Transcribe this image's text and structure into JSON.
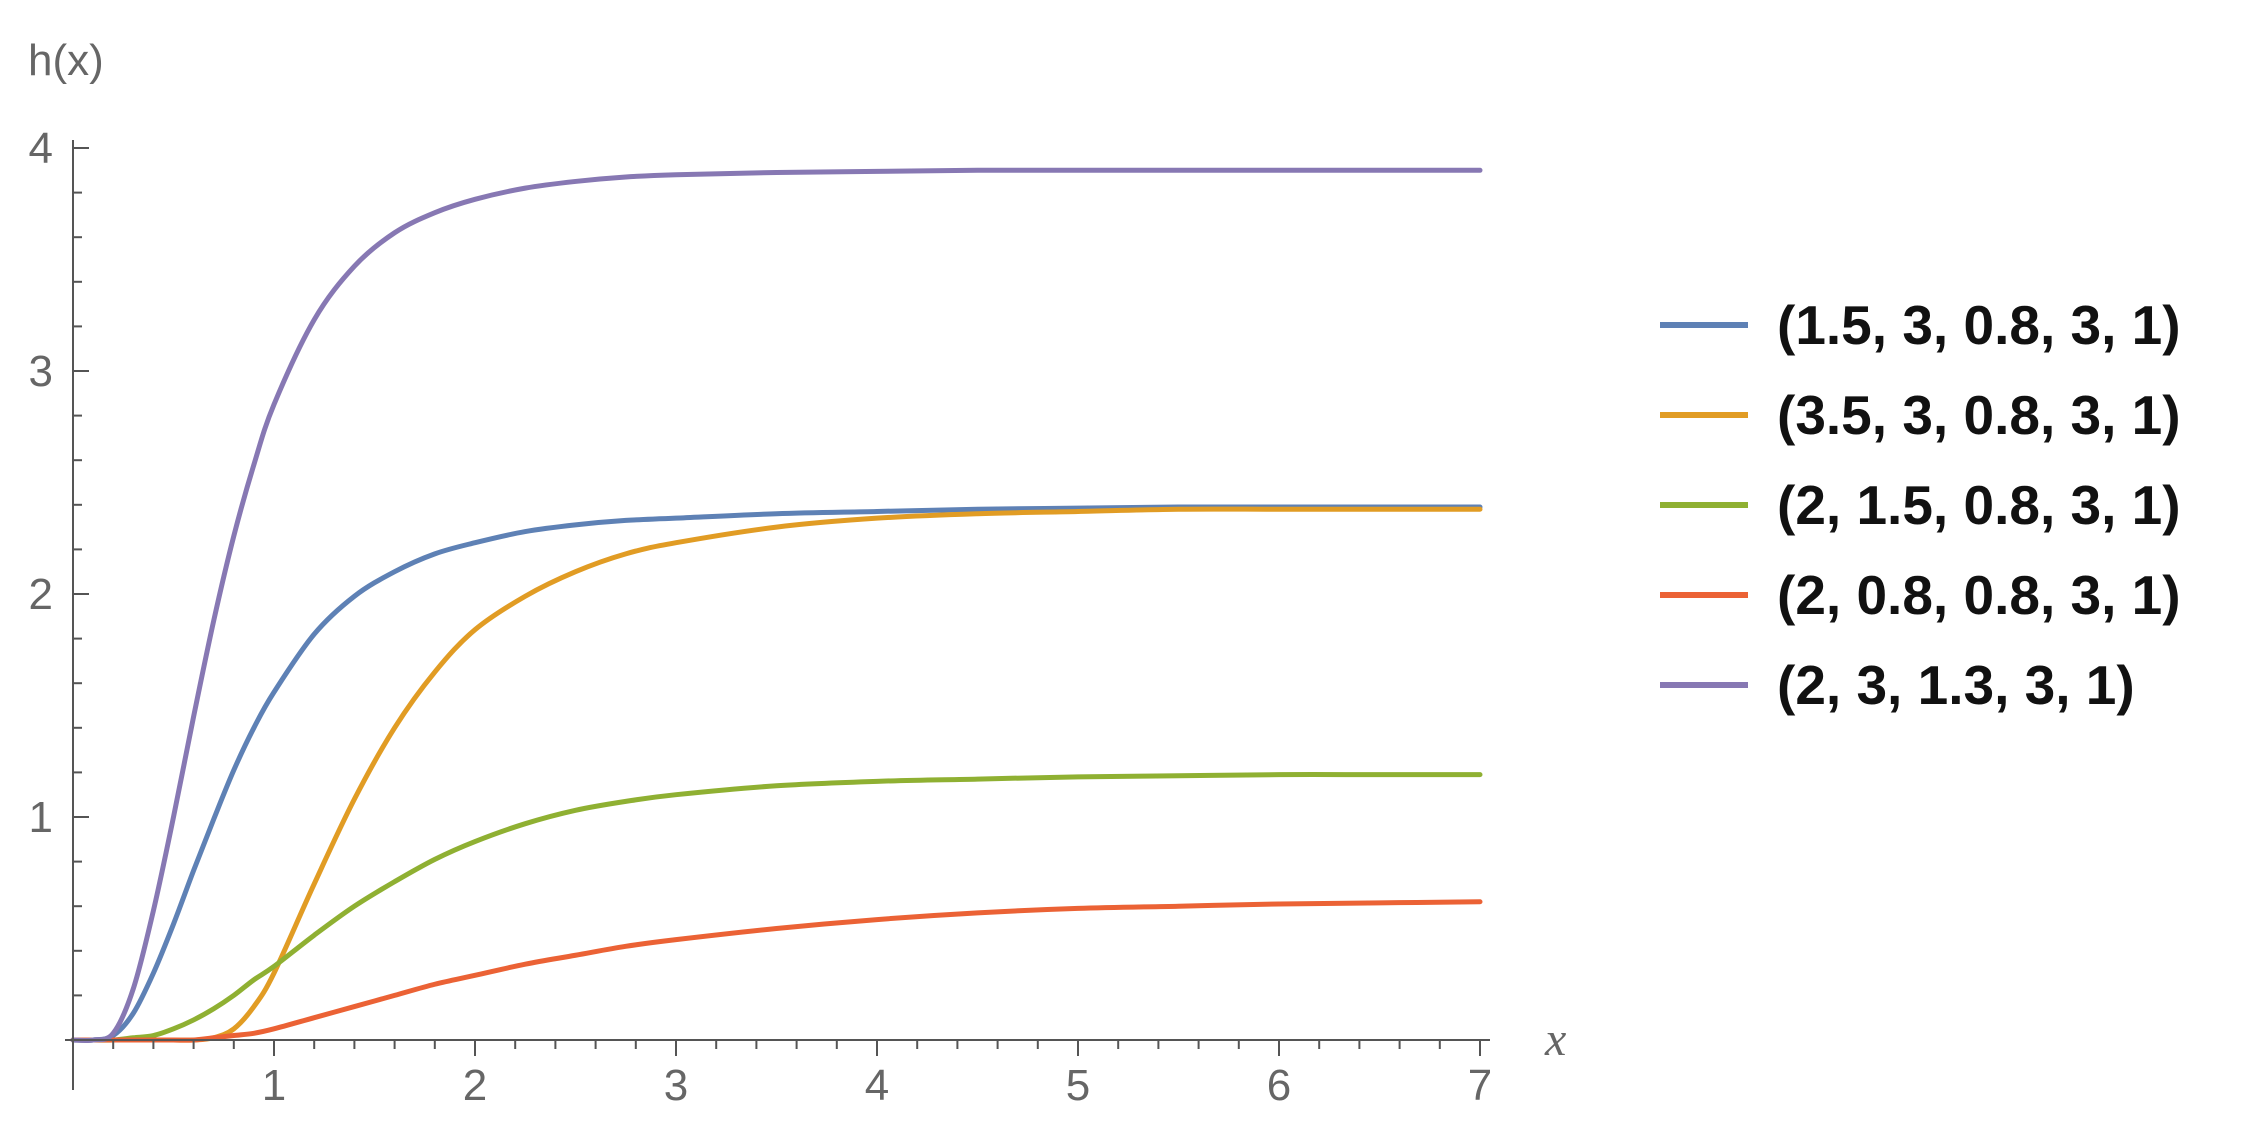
{
  "chart_data": {
    "type": "line",
    "title": "",
    "xlabel": "x",
    "ylabel": "h(x)",
    "xlim": [
      0,
      7
    ],
    "ylim": [
      0,
      4
    ],
    "x_ticks": [
      "1",
      "2",
      "3",
      "4",
      "5",
      "6",
      "7"
    ],
    "y_ticks": [
      "1",
      "2",
      "3",
      "4"
    ],
    "grid": false,
    "legend_position": "right",
    "x": [
      0,
      0.1,
      0.2,
      0.3,
      0.4,
      0.5,
      0.6,
      0.7,
      0.8,
      0.9,
      1.0,
      1.2,
      1.4,
      1.6,
      1.8,
      2.0,
      2.25,
      2.5,
      2.75,
      3.0,
      3.5,
      4.0,
      4.5,
      5.0,
      5.5,
      6.0,
      6.5,
      7.0
    ],
    "series": [
      {
        "name": "(1.5, 3, 0.8, 3, 1)",
        "color": "#5e81b5",
        "values": [
          0,
          0,
          0.02,
          0.12,
          0.3,
          0.52,
          0.76,
          0.99,
          1.21,
          1.4,
          1.56,
          1.82,
          1.99,
          2.1,
          2.18,
          2.23,
          2.28,
          2.31,
          2.33,
          2.34,
          2.36,
          2.37,
          2.38,
          2.385,
          2.39,
          2.39,
          2.39,
          2.39
        ]
      },
      {
        "name": "(3.5, 3, 0.8, 3, 1)",
        "color": "#e19c24",
        "values": [
          0,
          0,
          0,
          0,
          0,
          0,
          0,
          0.01,
          0.05,
          0.15,
          0.3,
          0.7,
          1.08,
          1.4,
          1.65,
          1.84,
          1.99,
          2.1,
          2.18,
          2.23,
          2.3,
          2.34,
          2.36,
          2.37,
          2.38,
          2.38,
          2.38,
          2.38
        ]
      },
      {
        "name": "(2, 1.5, 0.8, 3, 1)",
        "color": "#8fb032",
        "values": [
          0,
          0,
          0,
          0.01,
          0.02,
          0.05,
          0.09,
          0.14,
          0.2,
          0.27,
          0.33,
          0.47,
          0.6,
          0.71,
          0.81,
          0.89,
          0.97,
          1.03,
          1.07,
          1.1,
          1.14,
          1.16,
          1.17,
          1.18,
          1.185,
          1.19,
          1.19,
          1.19
        ]
      },
      {
        "name": "(2, 0.8, 0.8, 3, 1)",
        "color": "#eb6235",
        "values": [
          0,
          0,
          0,
          0,
          0,
          0,
          0,
          0.01,
          0.02,
          0.03,
          0.05,
          0.1,
          0.15,
          0.2,
          0.25,
          0.29,
          0.34,
          0.38,
          0.42,
          0.45,
          0.5,
          0.54,
          0.57,
          0.59,
          0.6,
          0.61,
          0.615,
          0.62
        ]
      },
      {
        "name": "(2, 3, 1.3, 3, 1)",
        "color": "#8778b3",
        "values": [
          0,
          0,
          0.03,
          0.23,
          0.58,
          1.0,
          1.45,
          1.88,
          2.26,
          2.58,
          2.85,
          3.23,
          3.47,
          3.62,
          3.71,
          3.77,
          3.82,
          3.85,
          3.87,
          3.88,
          3.89,
          3.895,
          3.9,
          3.9,
          3.9,
          3.9,
          3.9,
          3.9
        ]
      }
    ]
  }
}
